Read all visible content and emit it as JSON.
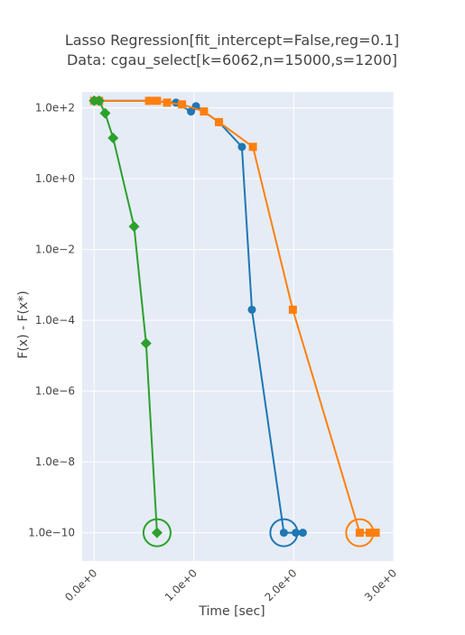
{
  "chart_data": {
    "type": "line",
    "title_line1": "Lasso Regression[fit_intercept=False,reg=0.1]",
    "title_line2": "Data: cgau_select[k=6062,n=15000,s=1200]",
    "xlabel": "Time [sec]",
    "ylabel": "F(x) - F(x*)",
    "xlim": [
      -0.12,
      3.0
    ],
    "ylim_log10": [
      -10.8,
      2.45
    ],
    "yscale": "log",
    "grid": true,
    "background": "#E5ECF6",
    "x_ticks": [
      {
        "value": 0.0,
        "label": "0.0e+0"
      },
      {
        "value": 1.0,
        "label": "1.0e+0"
      },
      {
        "value": 2.0,
        "label": "2.0e+0"
      },
      {
        "value": 3.0,
        "label": "3.0e+0"
      }
    ],
    "y_ticks": [
      {
        "exp": 2,
        "label": "1.0e+2"
      },
      {
        "exp": 0,
        "label": "1.0e+0"
      },
      {
        "exp": -2,
        "label": "1.0e−2"
      },
      {
        "exp": -4,
        "label": "1.0e−4"
      },
      {
        "exp": -6,
        "label": "1.0e−6"
      },
      {
        "exp": -8,
        "label": "1.0e−8"
      },
      {
        "exp": -10,
        "label": "1.0e−10"
      }
    ],
    "series": [
      {
        "color": "#1f77b4",
        "marker": "circle",
        "x": [
          0.0,
          0.05,
          0.55,
          0.82,
          0.97,
          1.02,
          1.25,
          1.48,
          1.58,
          1.9,
          2.02,
          2.09
        ],
        "log10_y": [
          2.2,
          2.2,
          2.2,
          2.15,
          1.9,
          2.05,
          1.6,
          0.9,
          -3.7,
          -10,
          -10,
          -10
        ],
        "final_circle": true
      },
      {
        "color": "#ff7f0e",
        "marker": "square",
        "x": [
          0.0,
          0.05,
          0.55,
          0.63,
          0.73,
          0.88,
          1.1,
          1.25,
          1.59,
          1.99,
          2.66,
          2.76,
          2.82
        ],
        "log10_y": [
          2.2,
          2.2,
          2.2,
          2.2,
          2.15,
          2.1,
          1.9,
          1.6,
          0.9,
          -3.7,
          -10,
          -10,
          -10
        ],
        "final_circle": true
      },
      {
        "color": "#2ca02c",
        "marker": "diamond",
        "x": [
          0.0,
          0.05,
          0.11,
          0.19,
          0.4,
          0.52,
          0.63
        ],
        "log10_y": [
          2.2,
          2.2,
          1.85,
          1.15,
          -1.35,
          -4.65,
          -10
        ],
        "final_circle": true
      }
    ]
  }
}
